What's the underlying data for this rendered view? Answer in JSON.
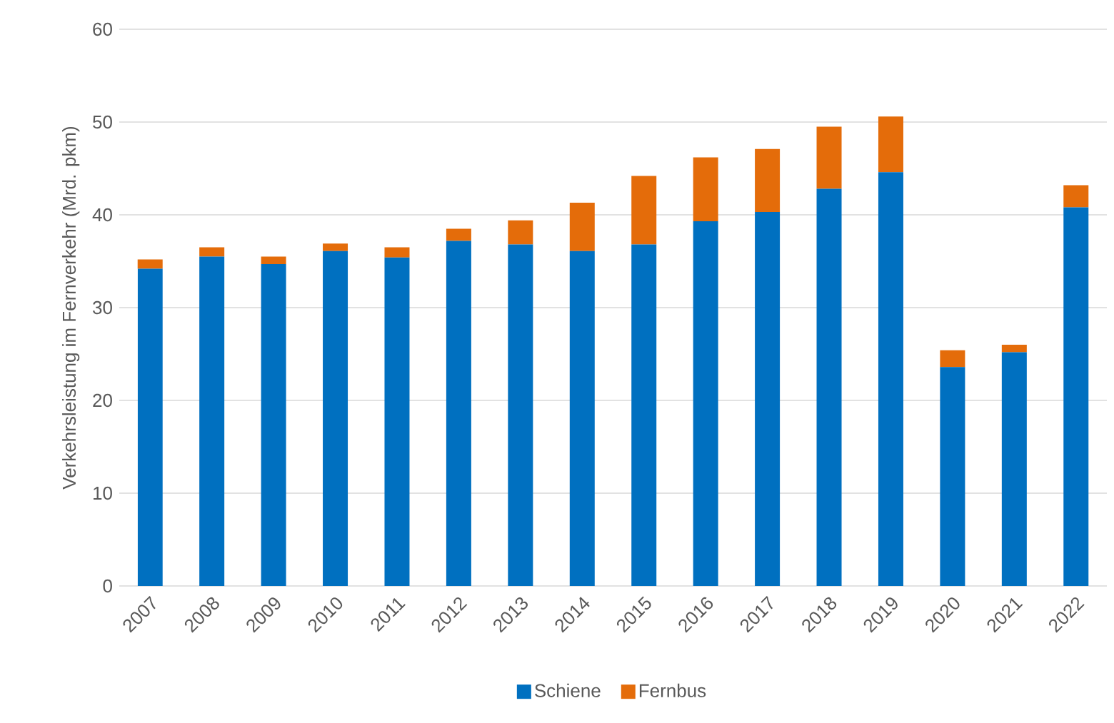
{
  "chart_data": {
    "type": "bar",
    "stacked": true,
    "ylabel": "Verkehrsleistung im Fernverkehr (Mrd. pkm)",
    "categories": [
      "2007",
      "2008",
      "2009",
      "2010",
      "2011",
      "2012",
      "2013",
      "2014",
      "2015",
      "2016",
      "2017",
      "2018",
      "2019",
      "2020",
      "2021",
      "2022"
    ],
    "series": [
      {
        "name": "Schiene",
        "color": "#0070c0",
        "values": [
          34.2,
          35.5,
          34.7,
          36.1,
          35.4,
          37.2,
          36.8,
          36.1,
          36.8,
          39.3,
          40.3,
          42.8,
          44.6,
          23.6,
          25.2,
          40.8
        ]
      },
      {
        "name": "Fernbus",
        "color": "#e46c0a",
        "values": [
          1.0,
          1.0,
          0.8,
          0.8,
          1.1,
          1.3,
          2.6,
          5.2,
          7.4,
          6.9,
          6.8,
          6.7,
          6.0,
          1.8,
          0.8,
          2.4
        ]
      }
    ],
    "ylim": [
      0,
      60
    ],
    "yticks": [
      0,
      10,
      20,
      30,
      40,
      50,
      60
    ],
    "grid": "y",
    "legend": "bottom"
  }
}
